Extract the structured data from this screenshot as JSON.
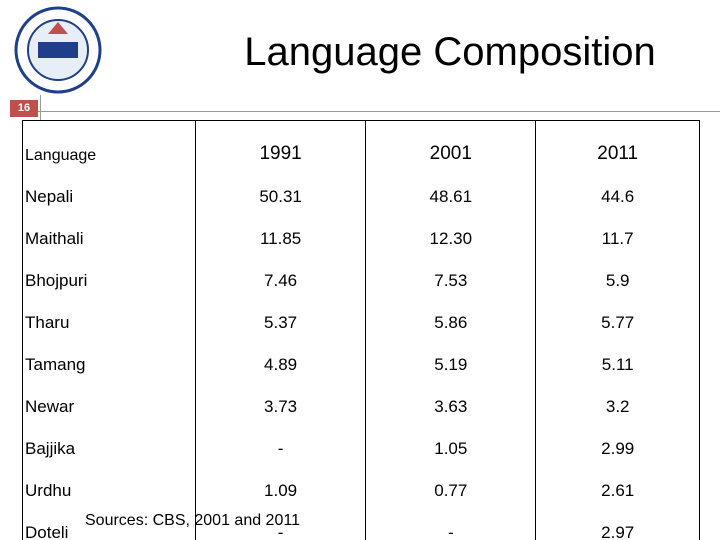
{
  "header": {
    "title": "Language  Composition",
    "slide_number": "16"
  },
  "table": {
    "columns": [
      "Language",
      "1991",
      "2001",
      "2011"
    ],
    "rows": [
      [
        "Nepali",
        "50.31",
        "48.61",
        "44.6"
      ],
      [
        "Maithali",
        "11.85",
        "12.30",
        "11.7"
      ],
      [
        "Bhojpuri",
        "7.46",
        "7.53",
        "5.9"
      ],
      [
        "Tharu",
        "5.37",
        "5.86",
        "5.77"
      ],
      [
        "Tamang",
        "4.89",
        "5.19",
        "5.11"
      ],
      [
        "Newar",
        "3.73",
        "3.63",
        "3.2"
      ],
      [
        "Bajjika",
        "-",
        "1.05",
        "2.99"
      ],
      [
        "Urdhu",
        "1.09",
        "0.77",
        "2.61"
      ],
      [
        "Doteli",
        "-",
        "-",
        "2.97"
      ]
    ]
  },
  "footer": {
    "source": "Sources: CBS, 2001 and 2011"
  }
}
